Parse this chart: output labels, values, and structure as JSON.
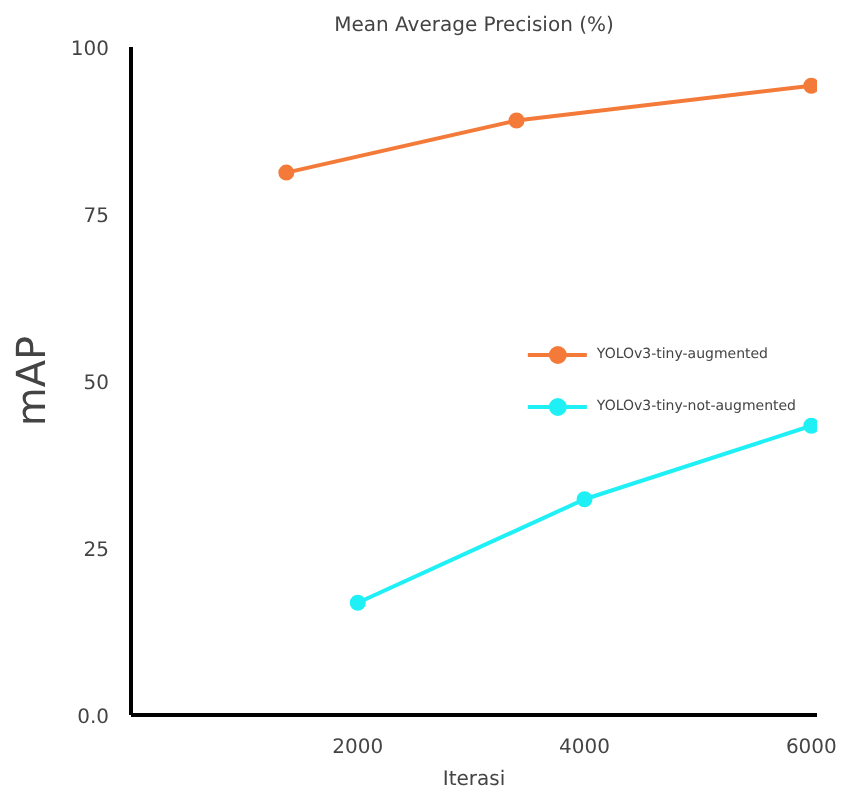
{
  "chart_data": {
    "type": "line",
    "title": "Mean Average Precision (%)",
    "xlabel": "Iterasi",
    "ylabel": "mAP",
    "xlim": [
      0,
      6050
    ],
    "xticks": [
      2000,
      4000,
      6000
    ],
    "ylim": [
      0,
      100
    ],
    "yticks": [
      {
        "value": 0,
        "label": "0.0"
      },
      25,
      50,
      75,
      100
    ],
    "grid": false,
    "legend": "right",
    "marker": "circle",
    "line_style": "solid",
    "series": [
      {
        "name": "YOLOv3-tiny-augmented",
        "color": "#f47a3a",
        "x": [
          1370,
          3400,
          6000
        ],
        "values": [
          81.2,
          89.0,
          94.2
        ]
      },
      {
        "name": "YOLOv3-tiny-not-augmented",
        "color": "#1ff0f5",
        "x": [
          2000,
          4000,
          6000
        ],
        "values": [
          16.8,
          32.3,
          43.3
        ]
      }
    ]
  }
}
